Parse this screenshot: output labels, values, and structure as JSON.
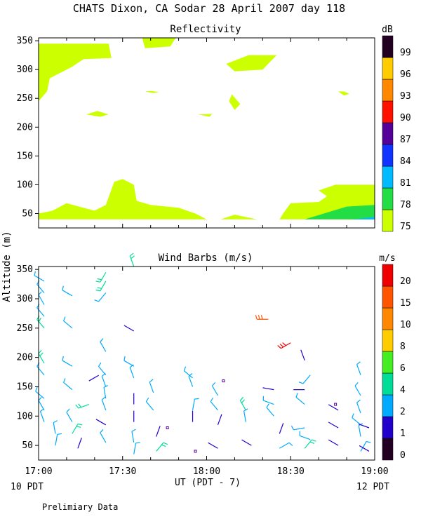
{
  "title": "CHATS Dixon, CA  Sodar  28 April 2007  day 118",
  "y_axis_label": "Altitude (m)",
  "x_axis_label": "UT  (PDT - 7)",
  "left_footer": "10 PDT",
  "right_footer": "12 PDT",
  "bottom_note": "Prelimiary Data",
  "x_ticks": [
    "17:00",
    "17:30",
    "18:00",
    "18:30",
    "19:00"
  ],
  "y_ticks": [
    50,
    100,
    150,
    200,
    250,
    300,
    350
  ],
  "chart_data": [
    {
      "type": "heatmap",
      "title": "Reflectivity",
      "colorbar_unit": "dB",
      "x_range_minutes_after_1700": [
        0,
        120
      ],
      "ylim": [
        25,
        355
      ],
      "legend_levels": [
        75,
        78,
        81,
        84,
        87,
        90,
        93,
        96,
        99
      ],
      "legend_colors": [
        "#ccff00",
        "#22dd44",
        "#00bbff",
        "#1133ff",
        "#550099",
        "#ff1100",
        "#ff8800",
        "#ffcc00",
        "#220022"
      ],
      "regions": [
        {
          "level": 75,
          "points": [
            [
              0,
              345
            ],
            [
              25,
              345
            ],
            [
              26,
              320
            ],
            [
              16,
              318
            ],
            [
              12,
              305
            ],
            [
              4,
              285
            ],
            [
              3,
              262
            ],
            [
              0,
              245
            ]
          ]
        },
        {
          "level": 75,
          "points": [
            [
              37,
              355
            ],
            [
              49,
              355
            ],
            [
              47,
              340
            ],
            [
              38,
              337
            ]
          ]
        },
        {
          "level": 75,
          "points": [
            [
              0,
              305
            ],
            [
              2,
              300
            ],
            [
              0,
              292
            ]
          ]
        },
        {
          "level": 75,
          "points": [
            [
              17,
              222
            ],
            [
              22,
              218
            ],
            [
              25,
              222
            ],
            [
              21,
              228
            ]
          ]
        },
        {
          "level": 75,
          "points": [
            [
              38,
              262
            ],
            [
              41,
              259
            ],
            [
              43,
              261
            ],
            [
              40,
              263
            ]
          ]
        },
        {
          "level": 75,
          "points": [
            [
              57,
              222
            ],
            [
              61,
              218
            ],
            [
              62,
              223
            ]
          ]
        },
        {
          "level": 75,
          "points": [
            [
              68,
              245
            ],
            [
              70,
              230
            ],
            [
              72,
              240
            ],
            [
              69,
              257
            ]
          ]
        },
        {
          "level": 75,
          "points": [
            [
              67,
              310
            ],
            [
              75,
              325
            ],
            [
              85,
              325
            ],
            [
              80,
              300
            ],
            [
              70,
              297
            ]
          ]
        },
        {
          "level": 75,
          "points": [
            [
              107,
              262
            ],
            [
              109,
              255
            ],
            [
              111,
              258
            ],
            [
              109,
              262
            ]
          ]
        },
        {
          "level": 75,
          "points": [
            [
              0,
              50
            ],
            [
              5,
              55
            ],
            [
              10,
              68
            ],
            [
              16,
              60
            ],
            [
              20,
              55
            ],
            [
              24,
              65
            ],
            [
              27,
              105
            ],
            [
              30,
              110
            ],
            [
              34,
              100
            ],
            [
              35,
              72
            ],
            [
              40,
              65
            ],
            [
              50,
              60
            ],
            [
              56,
              50
            ],
            [
              60,
              40
            ],
            [
              0,
              40
            ]
          ]
        },
        {
          "level": 75,
          "points": [
            [
              65,
              40
            ],
            [
              70,
              48
            ],
            [
              78,
              40
            ]
          ]
        },
        {
          "level": 75,
          "points": [
            [
              86,
              40
            ],
            [
              88,
              55
            ],
            [
              90,
              68
            ],
            [
              100,
              70
            ],
            [
              103,
              80
            ],
            [
              100,
              90
            ],
            [
              106,
              100
            ],
            [
              120,
              100
            ],
            [
              120,
              40
            ]
          ]
        },
        {
          "level": 78,
          "points": [
            [
              95,
              40
            ],
            [
              110,
              62
            ],
            [
              120,
              65
            ],
            [
              120,
              40
            ]
          ]
        },
        {
          "level": 81,
          "points": [
            [
              112,
              40
            ],
            [
              120,
              44
            ],
            [
              120,
              40
            ]
          ]
        }
      ]
    },
    {
      "type": "scatter",
      "title": "Wind Barbs (m/s)",
      "colorbar_unit": "m/s",
      "x_range_minutes_after_1700": [
        0,
        120
      ],
      "ylim": [
        25,
        355
      ],
      "legend_levels": [
        0,
        1,
        2,
        4,
        6,
        8,
        10,
        15,
        20
      ],
      "legend_colors": [
        "#220022",
        "#2200cc",
        "#00aaff",
        "#00dd99",
        "#44ee22",
        "#ffcc00",
        "#ff8800",
        "#ff5500",
        "#ee0000"
      ],
      "barbs": [
        {
          "t": 2,
          "h": 330,
          "s": 2,
          "d": 300
        },
        {
          "t": 2,
          "h": 310,
          "s": 2,
          "d": 320
        },
        {
          "t": 2,
          "h": 290,
          "s": 3,
          "d": 330
        },
        {
          "t": 2,
          "h": 270,
          "s": 3,
          "d": 320
        },
        {
          "t": 2,
          "h": 250,
          "s": 4,
          "d": 320
        },
        {
          "t": 2,
          "h": 190,
          "s": 4,
          "d": 330
        },
        {
          "t": 2,
          "h": 170,
          "s": 3,
          "d": 320
        },
        {
          "t": 2,
          "h": 130,
          "s": 2,
          "d": 310
        },
        {
          "t": 2,
          "h": 110,
          "s": 2,
          "d": 330
        },
        {
          "t": 2,
          "h": 90,
          "s": 2,
          "d": 340
        },
        {
          "t": 6,
          "h": 70,
          "s": 2,
          "d": 350
        },
        {
          "t": 6,
          "h": 50,
          "s": 2,
          "d": 10
        },
        {
          "t": 12,
          "h": 305,
          "s": 2,
          "d": 300
        },
        {
          "t": 12,
          "h": 250,
          "s": 2,
          "d": 310
        },
        {
          "t": 12,
          "h": 185,
          "s": 3,
          "d": 300
        },
        {
          "t": 12,
          "h": 145,
          "s": 3,
          "d": 310
        },
        {
          "t": 12,
          "h": 90,
          "s": 2,
          "d": 330
        },
        {
          "t": 12,
          "h": 70,
          "s": 4,
          "d": 30
        },
        {
          "t": 14,
          "h": 45,
          "s": 1,
          "d": 20
        },
        {
          "t": 24,
          "h": 345,
          "s": 4,
          "d": 210
        },
        {
          "t": 24,
          "h": 330,
          "s": 4,
          "d": 210
        },
        {
          "t": 24,
          "h": 310,
          "s": 3,
          "d": 220
        },
        {
          "t": 24,
          "h": 210,
          "s": 2,
          "d": 330
        },
        {
          "t": 24,
          "h": 170,
          "s": 2,
          "d": 320
        },
        {
          "t": 24,
          "h": 150,
          "s": 3,
          "d": 340
        },
        {
          "t": 24,
          "h": 130,
          "s": 2,
          "d": 350
        },
        {
          "t": 24,
          "h": 110,
          "s": 2,
          "d": 340
        },
        {
          "t": 24,
          "h": 85,
          "s": 1,
          "d": 300
        },
        {
          "t": 24,
          "h": 55,
          "s": 2,
          "d": 330
        },
        {
          "t": 18,
          "h": 120,
          "s": 4,
          "d": 250
        },
        {
          "t": 18,
          "h": 160,
          "s": 1,
          "d": 60
        },
        {
          "t": 34,
          "h": 355,
          "s": 4,
          "d": 340
        },
        {
          "t": 34,
          "h": 245,
          "s": 1,
          "d": 300
        },
        {
          "t": 34,
          "h": 185,
          "s": 3,
          "d": 300
        },
        {
          "t": 34,
          "h": 165,
          "s": 3,
          "d": 340
        },
        {
          "t": 34,
          "h": 120,
          "s": 1,
          "d": 0
        },
        {
          "t": 34,
          "h": 90,
          "s": 1,
          "d": 0
        },
        {
          "t": 34,
          "h": 55,
          "s": 2,
          "d": 350
        },
        {
          "t": 34,
          "h": 35,
          "s": 2,
          "d": 10
        },
        {
          "t": 41,
          "h": 140,
          "s": 2,
          "d": 340
        },
        {
          "t": 41,
          "h": 110,
          "s": 2,
          "d": 320
        },
        {
          "t": 42,
          "h": 65,
          "s": 1,
          "d": 20
        },
        {
          "t": 42,
          "h": 40,
          "s": 4,
          "d": 40
        },
        {
          "t": 55,
          "h": 165,
          "s": 2,
          "d": 310
        },
        {
          "t": 55,
          "h": 150,
          "s": 2,
          "d": 340
        },
        {
          "t": 55,
          "h": 110,
          "s": 2,
          "d": 10
        },
        {
          "t": 55,
          "h": 90,
          "s": 1,
          "d": 0
        },
        {
          "t": 64,
          "h": 135,
          "s": 2,
          "d": 330
        },
        {
          "t": 64,
          "h": 110,
          "s": 2,
          "d": 320
        },
        {
          "t": 64,
          "h": 85,
          "s": 1,
          "d": 20
        },
        {
          "t": 64,
          "h": 45,
          "s": 1,
          "d": 300
        },
        {
          "t": 74,
          "h": 110,
          "s": 4,
          "d": 330
        },
        {
          "t": 74,
          "h": 90,
          "s": 2,
          "d": 350
        },
        {
          "t": 76,
          "h": 50,
          "s": 1,
          "d": 300
        },
        {
          "t": 82,
          "h": 265,
          "s": 15,
          "d": 270
        },
        {
          "t": 90,
          "h": 225,
          "s": 20,
          "d": 240
        },
        {
          "t": 84,
          "h": 145,
          "s": 1,
          "d": 280
        },
        {
          "t": 84,
          "h": 120,
          "s": 2,
          "d": 290
        },
        {
          "t": 84,
          "h": 100,
          "s": 2,
          "d": 320
        },
        {
          "t": 86,
          "h": 70,
          "s": 1,
          "d": 20
        },
        {
          "t": 86,
          "h": 45,
          "s": 2,
          "d": 60
        },
        {
          "t": 95,
          "h": 195,
          "s": 1,
          "d": 340
        },
        {
          "t": 95,
          "h": 145,
          "s": 1,
          "d": 270
        },
        {
          "t": 95,
          "h": 120,
          "s": 2,
          "d": 310
        },
        {
          "t": 95,
          "h": 80,
          "s": 2,
          "d": 260
        },
        {
          "t": 95,
          "h": 45,
          "s": 4,
          "d": 40
        },
        {
          "t": 97,
          "h": 60,
          "s": 2,
          "d": 290
        },
        {
          "t": 97,
          "h": 170,
          "s": 2,
          "d": 220
        },
        {
          "t": 107,
          "h": 110,
          "s": 1,
          "d": 300
        },
        {
          "t": 107,
          "h": 80,
          "s": 1,
          "d": 300
        },
        {
          "t": 107,
          "h": 50,
          "s": 1,
          "d": 300
        },
        {
          "t": 115,
          "h": 170,
          "s": 2,
          "d": 340
        },
        {
          "t": 115,
          "h": 135,
          "s": 2,
          "d": 330
        },
        {
          "t": 115,
          "h": 105,
          "s": 2,
          "d": 340
        },
        {
          "t": 115,
          "h": 85,
          "s": 2,
          "d": 310
        },
        {
          "t": 115,
          "h": 65,
          "s": 2,
          "d": 350
        },
        {
          "t": 115,
          "h": 40,
          "s": 2,
          "d": 30
        },
        {
          "t": 118,
          "h": 80,
          "s": 1,
          "d": 290
        },
        {
          "t": 118,
          "h": 40,
          "s": 1,
          "d": 300
        }
      ],
      "calm_markers": [
        {
          "t": 66,
          "h": 160
        },
        {
          "t": 46,
          "h": 80
        },
        {
          "t": 56,
          "h": 40
        },
        {
          "t": 106,
          "h": 120
        }
      ]
    }
  ]
}
